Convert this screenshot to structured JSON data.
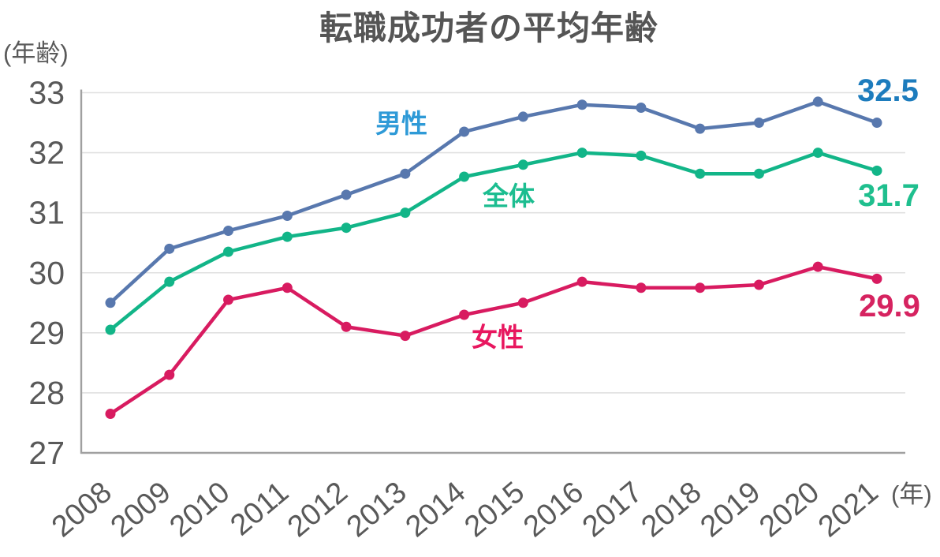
{
  "page": {
    "title": "転職成功者の平均年齢",
    "y_unit_label": "(年齢)",
    "x_unit_label": "(年)"
  },
  "theme": {
    "background": "#ffffff",
    "title_color": "#555555",
    "tick_color": "#595959",
    "grid_color": "#e0e0e0",
    "axis_color": "#a0a0a0"
  },
  "chart_data": {
    "type": "line",
    "title": "転職成功者の平均年齢",
    "xlabel": "(年)",
    "ylabel": "(年齢)",
    "categories": [
      "2008",
      "2009",
      "2010",
      "2011",
      "2012",
      "2013",
      "2014",
      "2015",
      "2016",
      "2017",
      "2018",
      "2019",
      "2020",
      "2021"
    ],
    "ylim": [
      27,
      33
    ],
    "yticks": [
      33,
      32,
      31,
      30,
      29,
      28,
      27
    ],
    "grid": true,
    "legend_position": "inline-labels",
    "series": [
      {
        "key": "male",
        "name": "男性",
        "color": "#5878ae",
        "name_color": "#2e9ad7",
        "end_label": "32.5",
        "end_label_color": "#1d7cbd",
        "values": [
          29.5,
          30.4,
          30.7,
          30.95,
          31.3,
          31.65,
          32.35,
          32.6,
          32.8,
          32.75,
          32.4,
          32.5,
          32.85,
          32.5
        ]
      },
      {
        "key": "overall",
        "name": "全体",
        "color": "#12b588",
        "name_color": "#1cbd90",
        "end_label": "31.7",
        "end_label_color": "#1fbf8e",
        "values": [
          29.05,
          29.85,
          30.35,
          30.6,
          30.75,
          31.0,
          31.6,
          31.8,
          32.0,
          31.95,
          31.65,
          31.65,
          32.0,
          31.7
        ]
      },
      {
        "key": "female",
        "name": "女性",
        "color": "#d81b60",
        "name_color": "#e8175f",
        "end_label": "29.9",
        "end_label_color": "#d62360",
        "values": [
          27.65,
          28.3,
          29.55,
          29.75,
          29.1,
          28.95,
          29.3,
          29.5,
          29.85,
          29.75,
          29.75,
          29.8,
          30.1,
          29.9
        ]
      }
    ],
    "layout_hints": {
      "x_tick_rotation": -40,
      "series_label_pos": {
        "male": [
          509,
          168
        ],
        "overall": [
          645,
          260
        ],
        "female": [
          631,
          439
        ]
      },
      "end_label_pos": {
        "male": [
          1126,
          128
        ],
        "overall": [
          1127,
          261
        ],
        "female": [
          1128,
          401
        ]
      }
    }
  }
}
